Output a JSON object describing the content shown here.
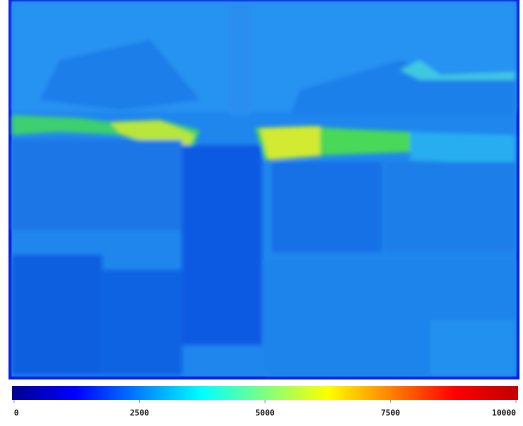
{
  "chart_data": {
    "type": "heatmap",
    "colormap": "jet",
    "colorbar_lim": [
      0,
      10000
    ],
    "colorbar_ticks": [
      0,
      2500,
      5000,
      7500,
      10000
    ]
  }
}
